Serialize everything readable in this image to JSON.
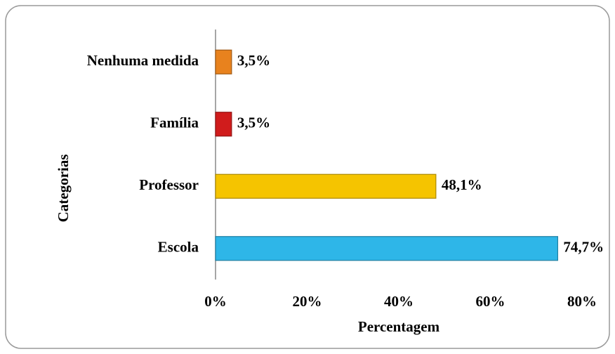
{
  "chart_data": {
    "type": "bar",
    "orientation": "horizontal",
    "categories": [
      "Nenhuma medida",
      "Família",
      "Professor",
      "Escola"
    ],
    "values": [
      3.5,
      3.5,
      48.1,
      74.7
    ],
    "value_labels": [
      "3,5%",
      "3,5%",
      "48,1%",
      "74,7%"
    ],
    "colors": [
      "#e8821e",
      "#d01c1c",
      "#f5c400",
      "#2eb6e8"
    ],
    "xlabel": "Percentagem",
    "ylabel": "Categorias",
    "xlim": [
      0,
      80
    ],
    "xticks": [
      {
        "value": 0,
        "label": "0%"
      },
      {
        "value": 20,
        "label": "20%"
      },
      {
        "value": 40,
        "label": "40%"
      },
      {
        "value": 60,
        "label": "60%"
      },
      {
        "value": 80,
        "label": "80%"
      }
    ],
    "grid": false
  }
}
